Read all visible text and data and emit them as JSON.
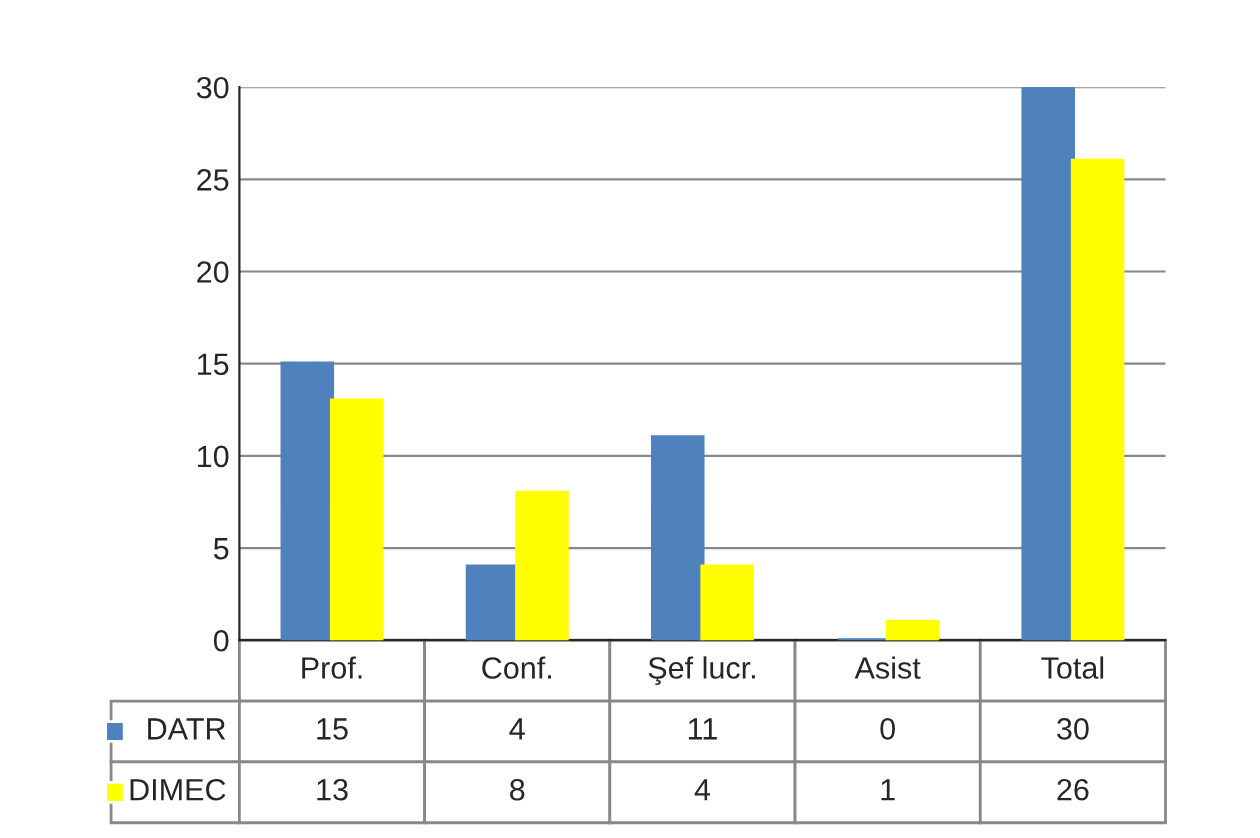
{
  "chart_data": {
    "type": "bar",
    "categories": [
      "Prof.",
      "Conf.",
      "Şef lucr.",
      "Asist",
      "Total"
    ],
    "series": [
      {
        "name": "DATR",
        "color": "#4f81bd",
        "values": [
          15,
          4,
          11,
          0,
          30
        ]
      },
      {
        "name": "DIMEC",
        "color": "#ffff00",
        "values": [
          13,
          8,
          4,
          1,
          26
        ]
      }
    ],
    "ylim": [
      0,
      30
    ],
    "yticks": [
      0,
      5,
      10,
      15,
      20,
      25,
      30
    ],
    "grid": "y",
    "data_labels": true,
    "legend": "bottom"
  }
}
